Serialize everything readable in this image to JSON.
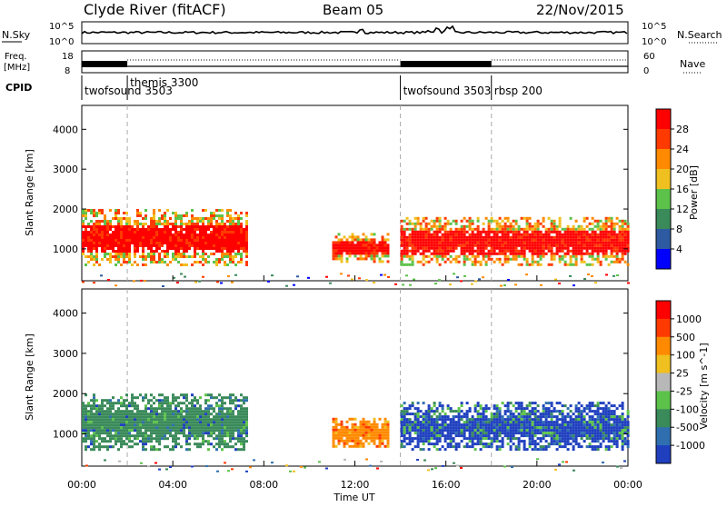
{
  "header": {
    "station": "Clyde River (fitACF)",
    "beam": "Beam 05",
    "date": "22/Nov/2015"
  },
  "noise_panel": {
    "left_label": "N.Sky",
    "right_label": "N.Search",
    "y_ticks_left": [
      "10^5",
      "10^0"
    ],
    "y_ticks_right": [
      "10^5",
      "10^0"
    ]
  },
  "freq_panel": {
    "left_label_1": "Freq.",
    "left_label_2": "[MHz]",
    "left_ticks": [
      "18",
      "8"
    ],
    "right_label": "Nave",
    "right_ticks": [
      "60",
      "0"
    ]
  },
  "cpid_panel": {
    "label": "CPID",
    "segments": [
      {
        "start_h": 0.0,
        "end_h": 2.0,
        "name": "twofsound 3503"
      },
      {
        "start_h": 2.0,
        "end_h": 14.0,
        "name": "themis 3300"
      },
      {
        "start_h": 14.0,
        "end_h": 18.0,
        "name": "twofsound 3503"
      },
      {
        "start_h": 18.0,
        "end_h": 24.0,
        "name": "rbsp 200"
      }
    ]
  },
  "chart_data": [
    {
      "type": "heatmap",
      "name": "power",
      "ylabel": "Slant Range [km]",
      "yticks": [
        1000,
        2000,
        3000,
        4000
      ],
      "ylim": [
        200,
        4600
      ],
      "xlim_hours": [
        0,
        24
      ],
      "colorbar_label": "Power [dB]",
      "colorbar_ticks": [
        "4",
        "8",
        "12",
        "16",
        "20",
        "24",
        "28"
      ],
      "colorbar_colors": [
        "#0000ff",
        "#2d5aa0",
        "#3a8a5a",
        "#5cc24a",
        "#f0c020",
        "#ff8a00",
        "#ff3a00",
        "#ff0000"
      ],
      "echo_regions": [
        {
          "x": [
            0.0,
            7.2
          ],
          "y": [
            600,
            2000
          ],
          "level": "high",
          "note": ""
        },
        {
          "x": [
            11.0,
            13.5
          ],
          "y": [
            700,
            1400
          ],
          "level": "high",
          "note": ""
        },
        {
          "x": [
            14.0,
            24.0
          ],
          "y": [
            600,
            1800
          ],
          "level": "high",
          "note": ""
        }
      ]
    },
    {
      "type": "heatmap",
      "name": "velocity",
      "ylabel": "Slant Range [km]",
      "yticks": [
        1000,
        2000,
        3000,
        4000
      ],
      "ylim": [
        200,
        4600
      ],
      "xlim_hours": [
        0,
        24
      ],
      "colorbar_label": "Velocity [m s^-1]",
      "colorbar_ticks": [
        "1000",
        "500",
        "100",
        "25",
        "-25",
        "-100",
        "-500",
        "-1000"
      ],
      "colorbar_colors": [
        "#1f3fbf",
        "#2f6fb0",
        "#3a8a5a",
        "#5cc24a",
        "#b8b8b8",
        "#f0c020",
        "#ff8a00",
        "#ff3a00",
        "#ff0000"
      ],
      "echo_regions": [
        {
          "x": [
            0.0,
            7.2
          ],
          "y": [
            600,
            2000
          ],
          "level": "green"
        },
        {
          "x": [
            11.0,
            13.5
          ],
          "y": [
            700,
            1400
          ],
          "level": "orange"
        },
        {
          "x": [
            14.0,
            24.0
          ],
          "y": [
            600,
            1800
          ],
          "level": "blue"
        }
      ]
    }
  ],
  "x_axis": {
    "label": "Time UT",
    "ticks": [
      "00:00",
      "04:00",
      "08:00",
      "12:00",
      "16:00",
      "20:00",
      "00:00"
    ],
    "tick_hours": [
      0,
      4,
      8,
      12,
      16,
      20,
      24
    ]
  }
}
